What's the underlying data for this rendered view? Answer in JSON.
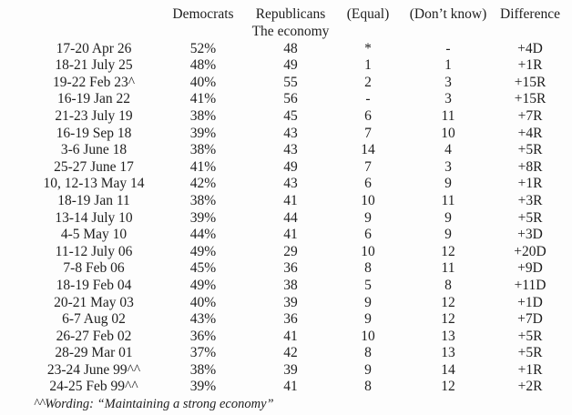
{
  "page": {
    "section_title": "The economy",
    "footnote": "^^Wording: “Maintaining a strong economy”"
  },
  "table": {
    "columns": [
      "Democrats",
      "Republicans",
      "(Equal)",
      "(Don’t know)",
      "Difference"
    ],
    "rows": [
      {
        "date": "17-20 Apr 26",
        "democrats": "52%",
        "republicans": "48",
        "equal": "*",
        "dont_know": "-",
        "difference": "+4D"
      },
      {
        "date": "18-21 July 25",
        "democrats": "48%",
        "republicans": "49",
        "equal": "1",
        "dont_know": "1",
        "difference": "+1R"
      },
      {
        "date": "19-22 Feb 23^",
        "democrats": "40%",
        "republicans": "55",
        "equal": "2",
        "dont_know": "3",
        "difference": "+15R"
      },
      {
        "date": "16-19 Jan 22",
        "democrats": "41%",
        "republicans": "56",
        "equal": "-",
        "dont_know": "3",
        "difference": "+15R"
      },
      {
        "date": "21-23 July 19",
        "democrats": "38%",
        "republicans": "45",
        "equal": "6",
        "dont_know": "11",
        "difference": "+7R"
      },
      {
        "date": "16-19 Sep 18",
        "democrats": "39%",
        "republicans": "43",
        "equal": "7",
        "dont_know": "10",
        "difference": "+4R"
      },
      {
        "date": "3-6 June 18",
        "democrats": "38%",
        "republicans": "43",
        "equal": "14",
        "dont_know": "4",
        "difference": "+5R"
      },
      {
        "date": "25-27 June 17",
        "democrats": "41%",
        "republicans": "49",
        "equal": "7",
        "dont_know": "3",
        "difference": "+8R"
      },
      {
        "date": "10, 12-13 May 14",
        "democrats": "42%",
        "republicans": "43",
        "equal": "6",
        "dont_know": "9",
        "difference": "+1R"
      },
      {
        "date": "18-19 Jan 11",
        "democrats": "38%",
        "republicans": "41",
        "equal": "10",
        "dont_know": "11",
        "difference": "+3R"
      },
      {
        "date": "13-14 July 10",
        "democrats": "39%",
        "republicans": "44",
        "equal": "9",
        "dont_know": "9",
        "difference": "+5R"
      },
      {
        "date": "4-5 May 10",
        "democrats": "44%",
        "republicans": "41",
        "equal": "6",
        "dont_know": "9",
        "difference": "+3D"
      },
      {
        "date": "11-12 July 06",
        "democrats": "49%",
        "republicans": "29",
        "equal": "10",
        "dont_know": "12",
        "difference": "+20D"
      },
      {
        "date": "7-8 Feb 06",
        "democrats": "45%",
        "republicans": "36",
        "equal": "8",
        "dont_know": "11",
        "difference": "+9D"
      },
      {
        "date": "18-19 Feb 04",
        "democrats": "49%",
        "republicans": "38",
        "equal": "5",
        "dont_know": "8",
        "difference": "+11D"
      },
      {
        "date": "20-21 May 03",
        "democrats": "40%",
        "republicans": "39",
        "equal": "9",
        "dont_know": "12",
        "difference": "+1D"
      },
      {
        "date": "6-7 Aug 02",
        "democrats": "43%",
        "republicans": "36",
        "equal": "9",
        "dont_know": "12",
        "difference": "+7D"
      },
      {
        "date": "26-27 Feb 02",
        "democrats": "36%",
        "republicans": "41",
        "equal": "10",
        "dont_know": "13",
        "difference": "+5R"
      },
      {
        "date": "28-29 Mar 01",
        "democrats": "37%",
        "republicans": "42",
        "equal": "8",
        "dont_know": "13",
        "difference": "+5R"
      },
      {
        "date": "23-24 June 99^^",
        "democrats": "38%",
        "republicans": "39",
        "equal": "9",
        "dont_know": "14",
        "difference": "+1R"
      },
      {
        "date": "24-25 Feb 99^^",
        "democrats": "39%",
        "republicans": "41",
        "equal": "8",
        "dont_know": "12",
        "difference": "+2R"
      }
    ]
  }
}
